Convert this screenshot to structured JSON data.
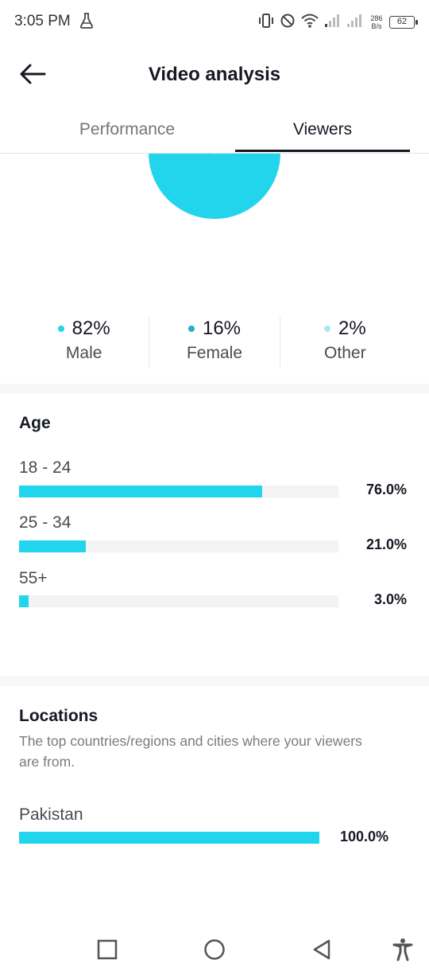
{
  "status_bar": {
    "time": "3:05 PM",
    "net_speed_value": "286",
    "net_speed_unit": "B/s",
    "battery": "62",
    "icons": [
      "flask-icon",
      "vibrate-icon",
      "do-not-disturb-icon",
      "wifi-icon",
      "signal-icon",
      "signal-icon",
      "battery-icon"
    ]
  },
  "header": {
    "title": "Video analysis",
    "back_icon": "back-arrow-icon"
  },
  "tabs": [
    {
      "label": "Performance",
      "active": false
    },
    {
      "label": "Viewers",
      "active": true
    }
  ],
  "gender": {
    "segments": [
      {
        "pct": "82%",
        "label": "Male",
        "value": 82,
        "color": "#22d5ec"
      },
      {
        "pct": "16%",
        "label": "Female",
        "value": 16,
        "color": "#23adcf"
      },
      {
        "pct": "2%",
        "label": "Other",
        "value": 2,
        "color": "#a9e8f1"
      }
    ]
  },
  "age": {
    "title": "Age",
    "rows": [
      {
        "label": "18 - 24",
        "pct": "76.0%",
        "value": 76.0
      },
      {
        "label": "25 - 34",
        "pct": "21.0%",
        "value": 21.0
      },
      {
        "label": "55+",
        "pct": "3.0%",
        "value": 3.0
      }
    ]
  },
  "locations": {
    "title": "Locations",
    "description": "The top countries/regions and cities where your viewers are from.",
    "rows": [
      {
        "label": "Pakistan",
        "pct": "100.0%",
        "value": 100.0
      }
    ]
  },
  "colors": {
    "accent": "#20d5ec",
    "text_primary": "#161823",
    "text_secondary": "#747579"
  },
  "nav_bar": {
    "icons": [
      "recents-square-icon",
      "home-circle-icon",
      "back-triangle-icon",
      "accessibility-icon"
    ]
  }
}
